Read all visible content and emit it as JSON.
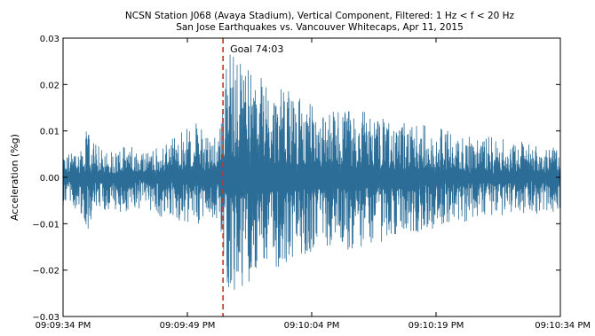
{
  "chart_data": {
    "type": "line",
    "title_line1": "NCSN Station J068 (Avaya Stadium), Vertical Component, Filtered: 1 Hz < f < 20 Hz",
    "title_line2": "San Jose Earthquakes vs. Vancouver Whitecaps, Apr 11, 2015",
    "xlabel": "",
    "ylabel": "Acceleration (%g)",
    "ylim": [
      -0.03,
      0.03
    ],
    "yticks": [
      {
        "value": 0.03,
        "label": "0.03"
      },
      {
        "value": 0.02,
        "label": "0.02"
      },
      {
        "value": 0.01,
        "label": "0.01"
      },
      {
        "value": 0.0,
        "label": "0.00"
      },
      {
        "value": -0.01,
        "label": "−0.01"
      },
      {
        "value": -0.02,
        "label": "−0.02"
      },
      {
        "value": -0.03,
        "label": "−0.03"
      }
    ],
    "xlim": [
      "09:09:34 PM",
      "09:10:34 PM"
    ],
    "xrange_seconds": [
      0,
      60
    ],
    "xticks": [
      {
        "t": 0,
        "label": "09:09:34 PM"
      },
      {
        "t": 15,
        "label": "09:09:49 PM"
      },
      {
        "t": 30,
        "label": "09:10:04 PM"
      },
      {
        "t": 45,
        "label": "09:10:19 PM"
      },
      {
        "t": 60,
        "label": "09:10:34 PM"
      }
    ],
    "grid": false,
    "series": [
      {
        "color": "#2b6d97",
        "envelope": [
          {
            "t": 0,
            "max": 0.005,
            "min": -0.006
          },
          {
            "t": 2,
            "max": 0.006,
            "min": -0.007
          },
          {
            "t": 3,
            "max": 0.011,
            "min": -0.012
          },
          {
            "t": 4,
            "max": 0.007,
            "min": -0.008
          },
          {
            "t": 6,
            "max": 0.006,
            "min": -0.007
          },
          {
            "t": 8,
            "max": 0.007,
            "min": -0.008
          },
          {
            "t": 10,
            "max": 0.006,
            "min": -0.007
          },
          {
            "t": 12,
            "max": 0.007,
            "min": -0.009
          },
          {
            "t": 14,
            "max": 0.01,
            "min": -0.011
          },
          {
            "t": 16,
            "max": 0.012,
            "min": -0.01
          },
          {
            "t": 18,
            "max": 0.009,
            "min": -0.01
          },
          {
            "t": 18.9,
            "max": 0.012,
            "min": -0.01
          },
          {
            "t": 19.3,
            "max": 0.02,
            "min": -0.02
          },
          {
            "t": 20.0,
            "max": 0.028,
            "min": -0.024
          },
          {
            "t": 21.0,
            "max": 0.027,
            "min": -0.027
          },
          {
            "t": 22.0,
            "max": 0.026,
            "min": -0.025
          },
          {
            "t": 23.5,
            "max": 0.022,
            "min": -0.024
          },
          {
            "t": 25,
            "max": 0.02,
            "min": -0.02
          },
          {
            "t": 28,
            "max": 0.018,
            "min": -0.018
          },
          {
            "t": 31,
            "max": 0.015,
            "min": -0.015
          },
          {
            "t": 35,
            "max": 0.015,
            "min": -0.016
          },
          {
            "t": 40,
            "max": 0.012,
            "min": -0.013
          },
          {
            "t": 45,
            "max": 0.011,
            "min": -0.011
          },
          {
            "t": 50,
            "max": 0.009,
            "min": -0.009
          },
          {
            "t": 55,
            "max": 0.008,
            "min": -0.008
          },
          {
            "t": 58,
            "max": 0.007,
            "min": -0.008
          },
          {
            "t": 60,
            "max": 0.006,
            "min": -0.007
          }
        ]
      }
    ],
    "annotations": [
      {
        "type": "vline",
        "t": 19.3,
        "color": "#c0392b",
        "style": "dashed",
        "text": "Goal 74:03"
      }
    ]
  }
}
